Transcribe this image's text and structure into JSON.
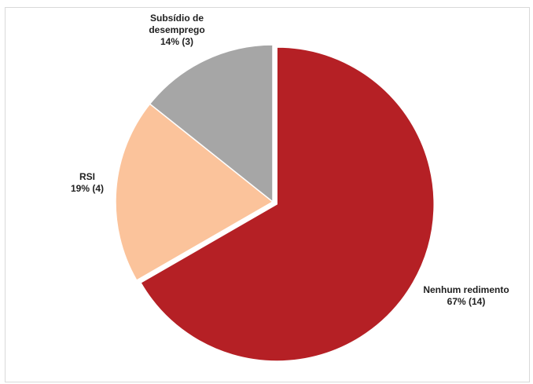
{
  "chart_data": {
    "type": "pie",
    "title": "",
    "slices": [
      {
        "key": "nenhum",
        "name": "Nenhum redimento",
        "value": 14,
        "percent_label": "67% (14)",
        "color": "#b52025",
        "exploded": true
      },
      {
        "key": "rsi",
        "name": "RSI",
        "value": 4,
        "percent_label": "19% (4)",
        "color": "#fbc39b",
        "exploded": false
      },
      {
        "key": "subsidio",
        "name": "Subsídio de desemprego",
        "name_lines": [
          "Subsídio de",
          "desemprego"
        ],
        "value": 3,
        "percent_label": "14% (3)",
        "color": "#a6a6a6",
        "exploded": false
      }
    ]
  }
}
